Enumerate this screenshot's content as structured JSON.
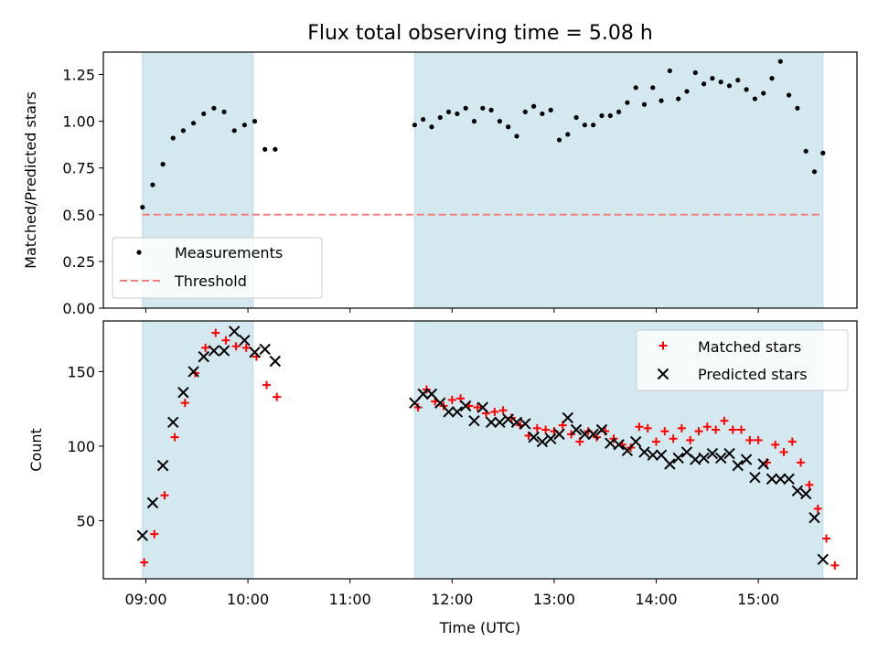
{
  "title": "Flux total observing time = 5.08 h",
  "colors": {
    "shade": "#d3e9ef",
    "threshold": "#f47f7f",
    "matched": "#ff0000",
    "predicted": "#000000",
    "measurement": "#000000"
  },
  "chart_data": [
    {
      "type": "scatter",
      "ylabel": "Matched/Predicted stars",
      "ylim": [
        0,
        1.37
      ],
      "yticks": [
        "0.00",
        "0.25",
        "0.50",
        "0.75",
        "1.00",
        "1.25"
      ],
      "xlim": [
        "08:35",
        "15:58"
      ],
      "shaded_intervals": [
        [
          "08:58",
          "10:03"
        ],
        [
          "11:38",
          "15:38"
        ]
      ],
      "threshold": 0.5,
      "legend": {
        "position": "lower-left",
        "entries": [
          "Measurements",
          "Threshold"
        ]
      },
      "series": [
        {
          "name": "Measurements",
          "points": [
            [
              "08:58",
              0.54
            ],
            [
              "09:04",
              0.66
            ],
            [
              "09:10",
              0.77
            ],
            [
              "09:16",
              0.91
            ],
            [
              "09:22",
              0.95
            ],
            [
              "09:28",
              0.99
            ],
            [
              "09:34",
              1.04
            ],
            [
              "09:40",
              1.07
            ],
            [
              "09:46",
              1.05
            ],
            [
              "09:52",
              0.95
            ],
            [
              "09:58",
              0.98
            ],
            [
              "10:04",
              1.0
            ],
            [
              "10:10",
              0.85
            ],
            [
              "10:16",
              0.85
            ],
            [
              "11:38",
              0.98
            ],
            [
              "11:43",
              1.01
            ],
            [
              "11:48",
              0.97
            ],
            [
              "11:53",
              1.02
            ],
            [
              "11:58",
              1.05
            ],
            [
              "12:03",
              1.04
            ],
            [
              "12:08",
              1.07
            ],
            [
              "12:13",
              1.0
            ],
            [
              "12:18",
              1.07
            ],
            [
              "12:23",
              1.06
            ],
            [
              "12:28",
              1.0
            ],
            [
              "12:33",
              0.97
            ],
            [
              "12:38",
              0.92
            ],
            [
              "12:43",
              1.05
            ],
            [
              "12:48",
              1.08
            ],
            [
              "12:53",
              1.04
            ],
            [
              "12:58",
              1.06
            ],
            [
              "13:03",
              0.9
            ],
            [
              "13:08",
              0.93
            ],
            [
              "13:13",
              1.02
            ],
            [
              "13:18",
              0.98
            ],
            [
              "13:23",
              0.98
            ],
            [
              "13:28",
              1.03
            ],
            [
              "13:33",
              1.03
            ],
            [
              "13:38",
              1.05
            ],
            [
              "13:43",
              1.1
            ],
            [
              "13:48",
              1.18
            ],
            [
              "13:53",
              1.09
            ],
            [
              "13:58",
              1.18
            ],
            [
              "14:03",
              1.11
            ],
            [
              "14:08",
              1.27
            ],
            [
              "14:13",
              1.12
            ],
            [
              "14:18",
              1.16
            ],
            [
              "14:23",
              1.26
            ],
            [
              "14:28",
              1.2
            ],
            [
              "14:33",
              1.23
            ],
            [
              "14:38",
              1.21
            ],
            [
              "14:43",
              1.19
            ],
            [
              "14:48",
              1.22
            ],
            [
              "14:53",
              1.17
            ],
            [
              "14:58",
              1.12
            ],
            [
              "15:03",
              1.15
            ],
            [
              "15:08",
              1.23
            ],
            [
              "15:13",
              1.32
            ],
            [
              "15:18",
              1.14
            ],
            [
              "15:23",
              1.07
            ],
            [
              "15:28",
              0.84
            ],
            [
              "15:33",
              0.73
            ],
            [
              "15:38",
              0.83
            ]
          ]
        },
        {
          "name": "Threshold",
          "style": "dashed",
          "value": 0.5
        }
      ]
    },
    {
      "type": "scatter",
      "xlabel": "Time (UTC)",
      "ylabel": "Count",
      "ylim": [
        11,
        184
      ],
      "yticks": [
        "50",
        "100",
        "150"
      ],
      "xticks": [
        "09:00",
        "10:00",
        "11:00",
        "12:00",
        "13:00",
        "14:00",
        "15:00"
      ],
      "xlim": [
        "08:35",
        "15:58"
      ],
      "shaded_intervals": [
        [
          "08:58",
          "10:03"
        ],
        [
          "11:38",
          "15:38"
        ]
      ],
      "legend": {
        "position": "upper-right",
        "entries": [
          "Matched stars",
          "Predicted stars"
        ]
      },
      "series": [
        {
          "name": "Matched stars",
          "marker": "plus",
          "points": [
            [
              "08:59",
              22
            ],
            [
              "09:05",
              41
            ],
            [
              "09:11",
              67
            ],
            [
              "09:17",
              106
            ],
            [
              "09:23",
              129
            ],
            [
              "09:29",
              149
            ],
            [
              "09:35",
              166
            ],
            [
              "09:41",
              176
            ],
            [
              "09:47",
              171
            ],
            [
              "09:53",
              167
            ],
            [
              "09:59",
              166
            ],
            [
              "10:05",
              160
            ],
            [
              "10:11",
              141
            ],
            [
              "10:17",
              133
            ],
            [
              "11:40",
              126
            ],
            [
              "11:45",
              138
            ],
            [
              "11:50",
              130
            ],
            [
              "11:55",
              127
            ],
            [
              "12:00",
              131
            ],
            [
              "12:05",
              132
            ],
            [
              "12:10",
              127
            ],
            [
              "12:15",
              126
            ],
            [
              "12:20",
              122
            ],
            [
              "12:25",
              123
            ],
            [
              "12:30",
              124
            ],
            [
              "12:35",
              119
            ],
            [
              "12:40",
              114
            ],
            [
              "12:45",
              107
            ],
            [
              "12:50",
              112
            ],
            [
              "12:55",
              111
            ],
            [
              "13:00",
              110
            ],
            [
              "13:05",
              114
            ],
            [
              "13:10",
              108
            ],
            [
              "13:15",
              103
            ],
            [
              "13:20",
              110
            ],
            [
              "13:25",
              106
            ],
            [
              "13:30",
              110
            ],
            [
              "13:35",
              105
            ],
            [
              "13:40",
              101
            ],
            [
              "13:45",
              99
            ],
            [
              "13:50",
              113
            ],
            [
              "13:55",
              112
            ],
            [
              "14:00",
              103
            ],
            [
              "14:05",
              110
            ],
            [
              "14:10",
              105
            ],
            [
              "14:15",
              112
            ],
            [
              "14:20",
              104
            ],
            [
              "14:25",
              110
            ],
            [
              "14:30",
              113
            ],
            [
              "14:35",
              111
            ],
            [
              "14:40",
              117
            ],
            [
              "14:45",
              111
            ],
            [
              "14:50",
              111
            ],
            [
              "14:55",
              104
            ],
            [
              "15:00",
              104
            ],
            [
              "15:05",
              89
            ],
            [
              "15:10",
              101
            ],
            [
              "15:15",
              96
            ],
            [
              "15:20",
              103
            ],
            [
              "15:25",
              89
            ],
            [
              "15:30",
              74
            ],
            [
              "15:35",
              58
            ],
            [
              "15:40",
              38
            ],
            [
              "15:45",
              20
            ]
          ]
        },
        {
          "name": "Predicted stars",
          "marker": "x",
          "points": [
            [
              "08:58",
              40
            ],
            [
              "09:04",
              62
            ],
            [
              "09:10",
              87
            ],
            [
              "09:16",
              116
            ],
            [
              "09:22",
              136
            ],
            [
              "09:28",
              150
            ],
            [
              "09:34",
              160
            ],
            [
              "09:40",
              164
            ],
            [
              "09:46",
              164
            ],
            [
              "09:52",
              177
            ],
            [
              "09:58",
              171
            ],
            [
              "10:04",
              163
            ],
            [
              "10:10",
              165
            ],
            [
              "10:16",
              157
            ],
            [
              "11:38",
              129
            ],
            [
              "11:43",
              135
            ],
            [
              "11:48",
              135
            ],
            [
              "11:53",
              129
            ],
            [
              "11:58",
              123
            ],
            [
              "12:03",
              123
            ],
            [
              "12:08",
              127
            ],
            [
              "12:13",
              117
            ],
            [
              "12:18",
              126
            ],
            [
              "12:23",
              116
            ],
            [
              "12:28",
              116
            ],
            [
              "12:33",
              118
            ],
            [
              "12:38",
              116
            ],
            [
              "12:43",
              115
            ],
            [
              "12:48",
              106
            ],
            [
              "12:53",
              103
            ],
            [
              "12:58",
              105
            ],
            [
              "13:03",
              108
            ],
            [
              "13:08",
              119
            ],
            [
              "13:13",
              111
            ],
            [
              "13:18",
              108
            ],
            [
              "13:23",
              108
            ],
            [
              "13:28",
              111
            ],
            [
              "13:33",
              102
            ],
            [
              "13:38",
              101
            ],
            [
              "13:43",
              97
            ],
            [
              "13:48",
              103
            ],
            [
              "13:53",
              96
            ],
            [
              "13:58",
              94
            ],
            [
              "14:03",
              94
            ],
            [
              "14:08",
              88
            ],
            [
              "14:13",
              92
            ],
            [
              "14:18",
              96
            ],
            [
              "14:23",
              91
            ],
            [
              "14:28",
              92
            ],
            [
              "14:33",
              95
            ],
            [
              "14:38",
              92
            ],
            [
              "14:43",
              95
            ],
            [
              "14:48",
              87
            ],
            [
              "14:53",
              91
            ],
            [
              "14:58",
              79
            ],
            [
              "15:03",
              88
            ],
            [
              "15:08",
              78
            ],
            [
              "15:13",
              78
            ],
            [
              "15:18",
              78
            ],
            [
              "15:23",
              70
            ],
            [
              "15:28",
              68
            ],
            [
              "15:33",
              52
            ],
            [
              "15:38",
              24
            ]
          ]
        }
      ]
    }
  ]
}
